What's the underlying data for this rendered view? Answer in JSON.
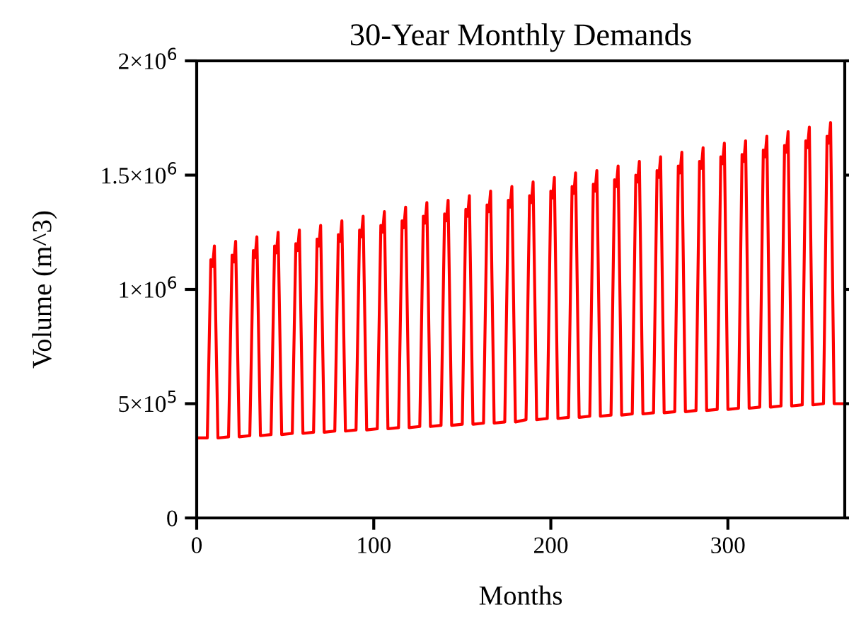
{
  "chart_data": {
    "type": "line",
    "title": "30-Year Monthly Demands",
    "xlabel": "Months",
    "ylabel": "Volume (m^3)",
    "x": [
      0,
      6,
      8,
      9,
      10,
      12,
      18,
      20,
      21,
      22,
      24,
      30,
      32,
      33,
      34,
      36,
      42,
      44,
      45,
      46,
      48,
      54,
      56,
      57,
      58,
      60,
      66,
      68,
      69,
      70,
      72,
      78,
      80,
      81,
      82,
      84,
      90,
      92,
      93,
      94,
      96,
      102,
      104,
      105,
      106,
      108,
      114,
      116,
      117,
      118,
      120,
      126,
      128,
      129,
      130,
      132,
      138,
      140,
      141,
      142,
      144,
      150,
      152,
      153,
      154,
      156,
      162,
      164,
      165,
      166,
      168,
      174,
      176,
      177,
      178,
      180,
      186,
      188,
      189,
      190,
      192,
      198,
      200,
      201,
      202,
      204,
      210,
      212,
      213,
      214,
      216,
      222,
      224,
      225,
      226,
      228,
      234,
      236,
      237,
      238,
      240,
      246,
      248,
      249,
      250,
      252,
      258,
      260,
      261,
      262,
      264,
      270,
      272,
      273,
      274,
      276,
      282,
      284,
      285,
      286,
      288,
      294,
      296,
      297,
      298,
      300,
      306,
      308,
      309,
      310,
      312,
      318,
      320,
      321,
      322,
      324,
      330,
      332,
      333,
      334,
      336,
      342,
      344,
      345,
      346,
      348,
      354,
      356,
      357,
      358,
      360,
      365
    ],
    "series": [
      {
        "color": "#ff0000",
        "values": [
          350000,
          350000,
          1130000,
          1100000,
          1190000,
          350000,
          355000,
          1150000,
          1120000,
          1210000,
          355000,
          360000,
          1170000,
          1140000,
          1230000,
          360000,
          365000,
          1190000,
          1160000,
          1250000,
          365000,
          370000,
          1200000,
          1170000,
          1260000,
          370000,
          375000,
          1220000,
          1190000,
          1280000,
          375000,
          380000,
          1240000,
          1210000,
          1300000,
          380000,
          385000,
          1260000,
          1230000,
          1320000,
          385000,
          390000,
          1280000,
          1250000,
          1340000,
          390000,
          395000,
          1300000,
          1270000,
          1360000,
          395000,
          400000,
          1320000,
          1290000,
          1380000,
          400000,
          405000,
          1330000,
          1300000,
          1390000,
          405000,
          410000,
          1350000,
          1320000,
          1410000,
          410000,
          415000,
          1370000,
          1340000,
          1430000,
          415000,
          420000,
          1390000,
          1360000,
          1450000,
          420000,
          430000,
          1410000,
          1380000,
          1470000,
          430000,
          435000,
          1430000,
          1400000,
          1490000,
          435000,
          440000,
          1450000,
          1420000,
          1510000,
          440000,
          445000,
          1460000,
          1430000,
          1520000,
          445000,
          450000,
          1480000,
          1450000,
          1540000,
          450000,
          455000,
          1500000,
          1470000,
          1560000,
          455000,
          460000,
          1520000,
          1490000,
          1580000,
          460000,
          465000,
          1540000,
          1510000,
          1600000,
          465000,
          470000,
          1560000,
          1530000,
          1620000,
          470000,
          475000,
          1580000,
          1550000,
          1640000,
          475000,
          480000,
          1590000,
          1560000,
          1650000,
          480000,
          485000,
          1610000,
          1580000,
          1670000,
          485000,
          490000,
          1630000,
          1600000,
          1690000,
          490000,
          495000,
          1650000,
          1620000,
          1710000,
          495000,
          500000,
          1670000,
          1640000,
          1730000,
          500000,
          500000
        ]
      }
    ],
    "xlim": [
      0,
      366
    ],
    "xticks": [
      0,
      100,
      200,
      300
    ],
    "ylim": [
      0,
      2000000
    ],
    "yticks": [
      {
        "value": 0,
        "label": "0"
      },
      {
        "value": 500000,
        "label": "5×10$^{5}$"
      },
      {
        "value": 1000000,
        "label": "1×10$^{6}$"
      },
      {
        "value": 1500000,
        "label": "1.5×10$^{6}$"
      },
      {
        "value": 2000000,
        "label": "2×10$^{6}$"
      }
    ],
    "grid": false,
    "legend": false,
    "marker": "none",
    "line_style": "solid"
  }
}
